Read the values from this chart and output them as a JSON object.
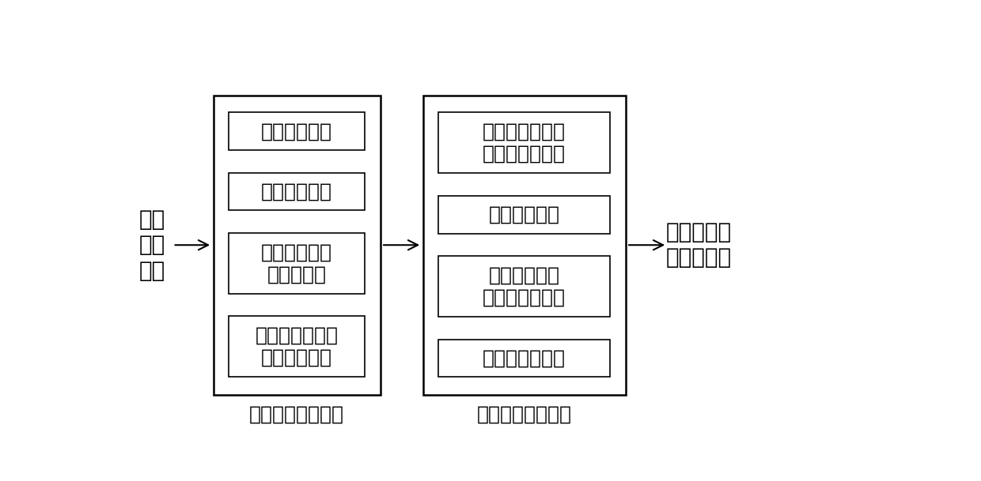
{
  "background_color": "#ffffff",
  "fig_width": 12.4,
  "fig_height": 6.09,
  "dpi": 100,
  "left_label": "系统\n开始\n加热",
  "right_label": "系统稳定在\n热平衡状态",
  "box1_label": "趋近运动阶段控制",
  "box2_label": "滑模运动阶段控制",
  "left_items": [
    "快速趋近原则",
    "削弱抖振原则",
    "基于学习预测\n的先验信息",
    "电源保护、温升\n速率限制约束"
  ],
  "right_items": [
    "双滑模函数代替\n传统单滑模函数",
    "模糊滑模过程",
    "环境温度辅助\n判决的增益控制",
    "自适应增益控制"
  ],
  "main_font_size": 18,
  "label_font_size": 20,
  "caption_font_size": 18,
  "text_color": "#000000"
}
